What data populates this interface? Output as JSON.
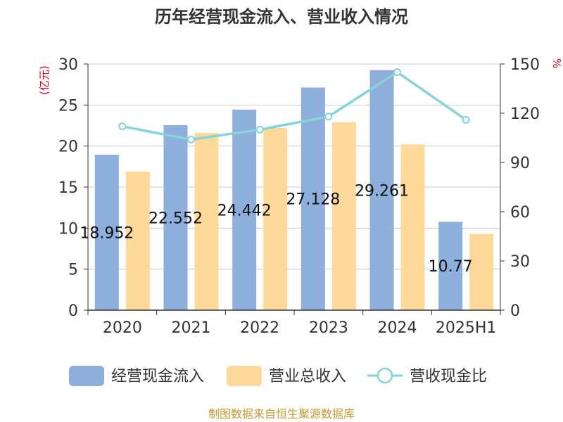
{
  "chart_data": {
    "type": "bar",
    "title": "历年经营现金流入、营业收入情况",
    "categories": [
      "2020",
      "2021",
      "2022",
      "2023",
      "2024",
      "2025H1"
    ],
    "y_left": {
      "label": "(亿元)",
      "ylim": [
        0,
        30
      ],
      "ticks": [
        0,
        5,
        10,
        15,
        20,
        25,
        30
      ]
    },
    "y_right": {
      "label": "%",
      "ylim": [
        0,
        150
      ],
      "ticks": [
        0,
        30,
        60,
        90,
        120,
        150
      ]
    },
    "grid": true,
    "legend_position": "bottom",
    "series": [
      {
        "name": "经营现金流入",
        "type": "bar",
        "axis": "left",
        "color": "#8eaedb",
        "values": [
          18.95,
          22.55,
          24.44,
          27.13,
          29.26,
          10.77
        ],
        "data_labels": [
          "18.952",
          "22.552",
          "24.442",
          "27.128",
          "29.261",
          "10.77"
        ]
      },
      {
        "name": "营业总收入",
        "type": "bar",
        "axis": "left",
        "color": "#fed999",
        "values": [
          16.9,
          21.6,
          22.2,
          22.9,
          20.2,
          9.3
        ]
      },
      {
        "name": "营收现金比",
        "type": "line",
        "axis": "right",
        "color": "#86d3d8",
        "values": [
          112,
          104,
          110,
          118,
          145,
          116
        ]
      }
    ]
  },
  "footer": {
    "source": "制图数据来自恒生聚源数据库"
  }
}
